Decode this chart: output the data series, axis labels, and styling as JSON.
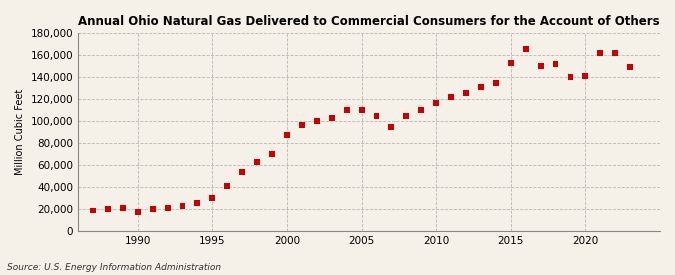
{
  "title": "Annual Ohio Natural Gas Delivered to Commercial Consumers for the Account of Others",
  "ylabel": "Million Cubic Feet",
  "source": "Source: U.S. Energy Information Administration",
  "background_color": "#f5f0e8",
  "marker_color": "#cc0000",
  "years": [
    1987,
    1988,
    1989,
    1990,
    1991,
    1992,
    1993,
    1994,
    1995,
    1996,
    1997,
    1998,
    1999,
    2000,
    2001,
    2002,
    2003,
    2004,
    2005,
    2006,
    2007,
    2008,
    2009,
    2010,
    2011,
    2012,
    2013,
    2014,
    2015,
    2016,
    2017,
    2018,
    2019,
    2020,
    2021,
    2022,
    2023
  ],
  "values": [
    19000,
    20500,
    21000,
    18000,
    20000,
    21000,
    23000,
    26000,
    30000,
    41000,
    54000,
    63000,
    70000,
    88000,
    97000,
    100000,
    103000,
    110000,
    110000,
    105000,
    95000,
    105000,
    110000,
    117000,
    122000,
    126000,
    131000,
    135000,
    153000,
    166000,
    150000,
    152000,
    140000,
    141000,
    162000,
    162000,
    149000
  ],
  "xlim": [
    1986,
    2025
  ],
  "ylim": [
    0,
    180000
  ],
  "yticks": [
    0,
    20000,
    40000,
    60000,
    80000,
    100000,
    120000,
    140000,
    160000,
    180000
  ],
  "xticks": [
    1990,
    1995,
    2000,
    2005,
    2010,
    2015,
    2020
  ]
}
